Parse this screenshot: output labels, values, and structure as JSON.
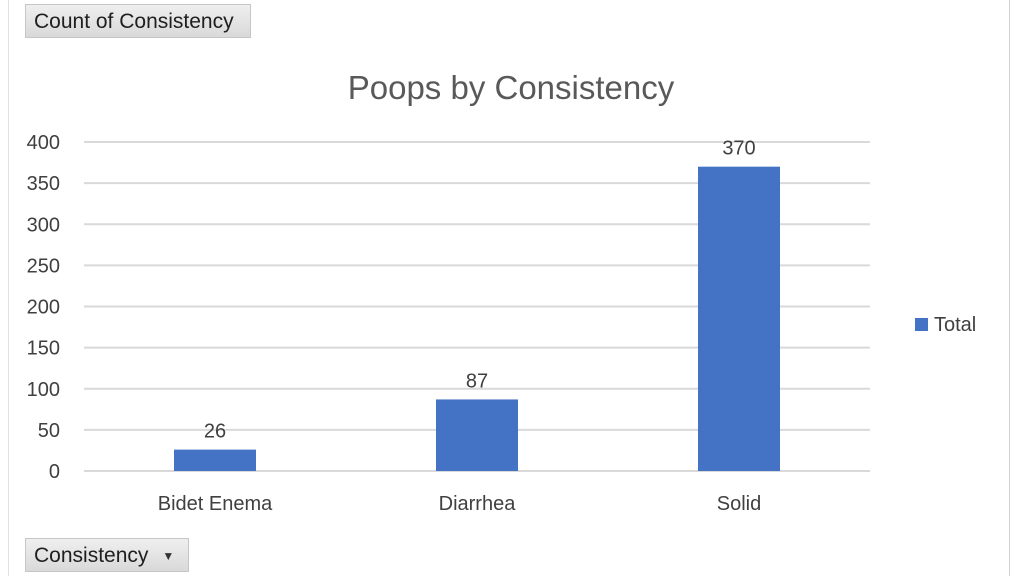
{
  "field_buttons": {
    "value_field": "Count of Consistency",
    "axis_field": "Consistency"
  },
  "colors": {
    "bar": "#4472c4",
    "gridline": "#d9d9d9"
  },
  "chart_data": {
    "type": "bar",
    "title": "Poops by Consistency",
    "categories": [
      "Bidet Enema",
      "Diarrhea",
      "Solid"
    ],
    "series": [
      {
        "name": "Total",
        "values": [
          26,
          87,
          370
        ]
      }
    ],
    "yticks": [
      "0",
      "50",
      "100",
      "150",
      "200",
      "250",
      "300",
      "350",
      "400"
    ],
    "ylim": [
      0,
      400
    ],
    "grid": true,
    "data_labels": true,
    "legend_position": "right"
  }
}
